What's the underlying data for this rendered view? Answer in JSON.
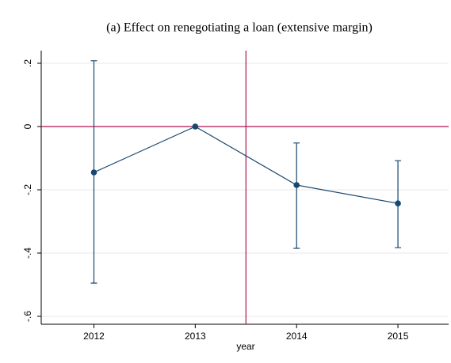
{
  "chart_data": {
    "type": "line",
    "title": "(a) Effect on renegotiating a loan (extensive margin)",
    "x_label": "year",
    "x": [
      2012,
      2013,
      2014,
      2015
    ],
    "xticks": [
      2012,
      2013,
      2014,
      2015
    ],
    "xlim": [
      2011.48,
      2015.5
    ],
    "ylim": [
      -0.625,
      0.24
    ],
    "yticks": [
      {
        "value": 0.2,
        "label": ".2"
      },
      0,
      {
        "value": -0.2,
        "label": "-.2"
      },
      {
        "value": -0.4,
        "label": "-.4"
      },
      {
        "value": -0.6,
        "label": "-.6"
      }
    ],
    "grid": true,
    "series": [
      {
        "color": "#1a476f",
        "values": [
          -0.145,
          0,
          -0.185,
          -0.243
        ],
        "ci_lower": [
          -0.495,
          0,
          -0.385,
          -0.383
        ],
        "ci_upper": [
          0.208,
          0,
          -0.052,
          -0.108
        ]
      }
    ],
    "xline": 2013.5,
    "yline": 0,
    "refline_color": "#b0124f"
  }
}
